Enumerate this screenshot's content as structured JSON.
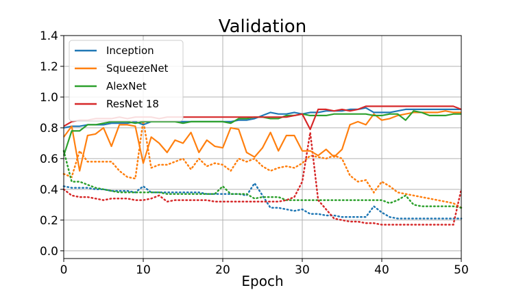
{
  "chart_data": {
    "type": "line",
    "title": "Validation",
    "xlabel": "Epoch",
    "ylabel": "",
    "xlim": [
      0,
      50
    ],
    "ylim": [
      -0.05,
      1.4
    ],
    "xticks": [
      0,
      10,
      20,
      30,
      40,
      50
    ],
    "xtick_labels": [
      "0",
      "10",
      "20",
      "30",
      "40",
      "50"
    ],
    "yticks": [
      0.0,
      0.2,
      0.4,
      0.6,
      0.8,
      1.0,
      1.2,
      1.4
    ],
    "ytick_labels": [
      "0.0",
      "0.2",
      "0.4",
      "0.6",
      "0.8",
      "1.0",
      "1.2",
      "1.4"
    ],
    "grid": true,
    "legend_position": "top-left",
    "x": [
      0,
      1,
      2,
      3,
      4,
      5,
      6,
      7,
      8,
      9,
      10,
      11,
      12,
      13,
      14,
      15,
      16,
      17,
      18,
      19,
      20,
      21,
      22,
      23,
      24,
      25,
      26,
      27,
      28,
      29,
      30,
      31,
      32,
      33,
      34,
      35,
      36,
      37,
      38,
      39,
      40,
      41,
      42,
      43,
      44,
      45,
      46,
      47,
      48,
      49,
      50
    ],
    "series": [
      {
        "name": "Inception",
        "color": "#1f77b4",
        "accuracy": [
          0.8,
          0.81,
          0.81,
          0.82,
          0.82,
          0.82,
          0.83,
          0.83,
          0.83,
          0.84,
          0.82,
          0.84,
          0.84,
          0.84,
          0.84,
          0.84,
          0.84,
          0.84,
          0.84,
          0.84,
          0.84,
          0.84,
          0.85,
          0.85,
          0.86,
          0.88,
          0.9,
          0.89,
          0.89,
          0.9,
          0.89,
          0.9,
          0.9,
          0.91,
          0.91,
          0.91,
          0.92,
          0.92,
          0.93,
          0.9,
          0.9,
          0.9,
          0.91,
          0.92,
          0.92,
          0.92,
          0.92,
          0.92,
          0.92,
          0.92,
          0.92
        ],
        "loss": [
          0.42,
          0.41,
          0.41,
          0.41,
          0.4,
          0.4,
          0.39,
          0.39,
          0.39,
          0.38,
          0.42,
          0.38,
          0.38,
          0.38,
          0.38,
          0.38,
          0.38,
          0.38,
          0.37,
          0.37,
          0.37,
          0.37,
          0.37,
          0.36,
          0.44,
          0.36,
          0.28,
          0.28,
          0.27,
          0.26,
          0.27,
          0.24,
          0.24,
          0.23,
          0.23,
          0.22,
          0.22,
          0.22,
          0.22,
          0.29,
          0.25,
          0.22,
          0.21,
          0.21,
          0.21,
          0.21,
          0.21,
          0.21,
          0.21,
          0.21,
          0.21
        ]
      },
      {
        "name": "SqueezeNet",
        "color": "#ff7f0e",
        "accuracy": [
          0.74,
          0.81,
          0.52,
          0.75,
          0.76,
          0.8,
          0.68,
          0.82,
          0.82,
          0.81,
          0.57,
          0.74,
          0.7,
          0.64,
          0.72,
          0.7,
          0.77,
          0.64,
          0.72,
          0.68,
          0.67,
          0.8,
          0.79,
          0.64,
          0.61,
          0.67,
          0.77,
          0.65,
          0.75,
          0.75,
          0.65,
          0.65,
          0.62,
          0.66,
          0.61,
          0.66,
          0.82,
          0.84,
          0.82,
          0.89,
          0.85,
          0.86,
          0.88,
          0.89,
          0.9,
          0.9,
          0.9,
          0.9,
          0.91,
          0.9,
          0.9
        ],
        "loss": [
          0.5,
          0.48,
          0.65,
          0.58,
          0.58,
          0.58,
          0.58,
          0.52,
          0.48,
          0.47,
          0.85,
          0.54,
          0.56,
          0.56,
          0.58,
          0.6,
          0.53,
          0.6,
          0.55,
          0.57,
          0.56,
          0.52,
          0.6,
          0.58,
          0.6,
          0.55,
          0.52,
          0.54,
          0.55,
          0.54,
          0.57,
          0.62,
          0.61,
          0.6,
          0.62,
          0.6,
          0.49,
          0.45,
          0.46,
          0.38,
          0.45,
          0.42,
          0.38,
          0.37,
          0.36,
          0.35,
          0.34,
          0.33,
          0.32,
          0.31,
          0.28
        ]
      },
      {
        "name": "AlexNet",
        "color": "#2ca02c",
        "accuracy": [
          0.62,
          0.78,
          0.78,
          0.82,
          0.82,
          0.83,
          0.84,
          0.84,
          0.84,
          0.83,
          0.84,
          0.84,
          0.84,
          0.84,
          0.84,
          0.83,
          0.84,
          0.84,
          0.84,
          0.84,
          0.84,
          0.83,
          0.86,
          0.86,
          0.87,
          0.87,
          0.86,
          0.86,
          0.88,
          0.88,
          0.89,
          0.88,
          0.88,
          0.88,
          0.89,
          0.89,
          0.89,
          0.89,
          0.89,
          0.88,
          0.88,
          0.89,
          0.89,
          0.85,
          0.91,
          0.9,
          0.88,
          0.88,
          0.88,
          0.89,
          0.89
        ],
        "loss": [
          0.65,
          0.45,
          0.45,
          0.43,
          0.41,
          0.4,
          0.39,
          0.38,
          0.38,
          0.38,
          0.38,
          0.38,
          0.38,
          0.37,
          0.37,
          0.37,
          0.37,
          0.37,
          0.37,
          0.37,
          0.42,
          0.37,
          0.37,
          0.37,
          0.34,
          0.35,
          0.35,
          0.35,
          0.33,
          0.33,
          0.33,
          0.33,
          0.33,
          0.33,
          0.33,
          0.33,
          0.33,
          0.33,
          0.33,
          0.33,
          0.33,
          0.31,
          0.33,
          0.36,
          0.3,
          0.29,
          0.29,
          0.29,
          0.29,
          0.29,
          0.28
        ]
      },
      {
        "name": "ResNet 18",
        "color": "#d62728",
        "accuracy": [
          0.81,
          0.84,
          0.85,
          0.85,
          0.86,
          0.86,
          0.86,
          0.87,
          0.86,
          0.87,
          0.87,
          0.87,
          0.86,
          0.87,
          0.87,
          0.87,
          0.87,
          0.87,
          0.87,
          0.87,
          0.87,
          0.87,
          0.87,
          0.87,
          0.87,
          0.87,
          0.87,
          0.87,
          0.87,
          0.88,
          0.89,
          0.79,
          0.92,
          0.92,
          0.91,
          0.92,
          0.91,
          0.92,
          0.94,
          0.94,
          0.94,
          0.94,
          0.94,
          0.94,
          0.94,
          0.94,
          0.94,
          0.94,
          0.94,
          0.94,
          0.92
        ],
        "loss": [
          0.4,
          0.36,
          0.35,
          0.35,
          0.34,
          0.33,
          0.34,
          0.34,
          0.34,
          0.33,
          0.33,
          0.34,
          0.36,
          0.32,
          0.33,
          0.33,
          0.33,
          0.33,
          0.33,
          0.32,
          0.32,
          0.32,
          0.32,
          0.32,
          0.32,
          0.32,
          0.32,
          0.32,
          0.33,
          0.35,
          0.45,
          0.77,
          0.33,
          0.27,
          0.21,
          0.2,
          0.19,
          0.19,
          0.18,
          0.18,
          0.17,
          0.17,
          0.17,
          0.17,
          0.17,
          0.17,
          0.17,
          0.17,
          0.17,
          0.17,
          0.4
        ]
      }
    ]
  }
}
